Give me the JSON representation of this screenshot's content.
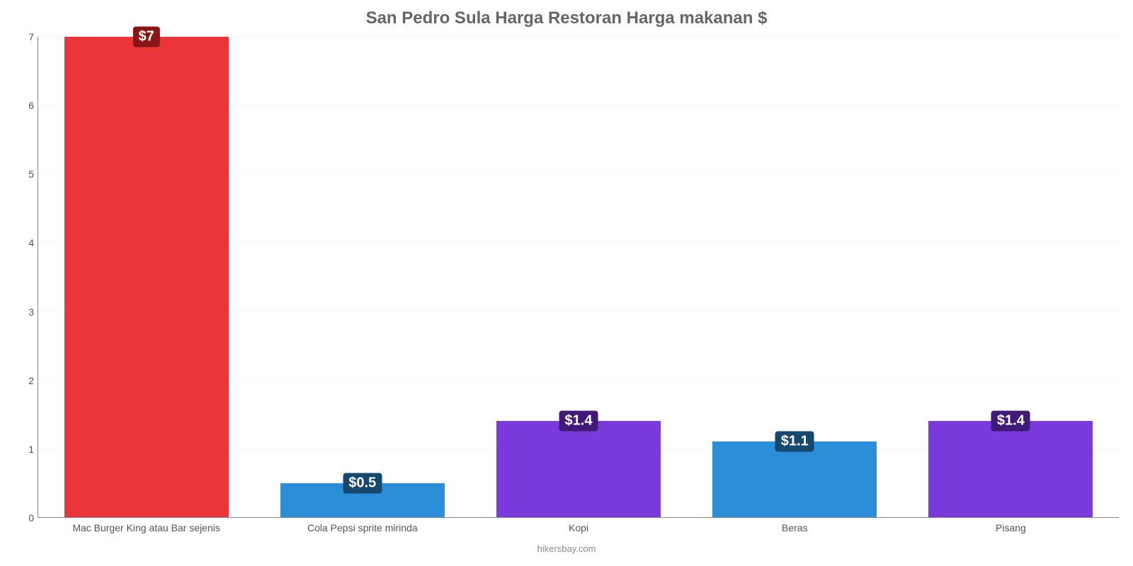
{
  "chart": {
    "type": "bar",
    "title": "San Pedro Sula Harga Restoran Harga makanan $",
    "title_color": "#666666",
    "title_fontsize": 24,
    "title_fontweight": "bold",
    "credit": "hikersbay.com",
    "credit_color": "#8a8a8a",
    "credit_fontsize": 13,
    "background_color": "#ffffff",
    "grid_color": "#fbf6f6",
    "axis_line_color": "#888888",
    "label_color": "#555555",
    "x_label_fontsize": 14,
    "y_label_fontsize": 14,
    "ylim": [
      0,
      7
    ],
    "ytick_step": 1,
    "yticks": [
      0,
      1,
      2,
      3,
      4,
      5,
      6,
      7
    ],
    "bar_width_pct": 76,
    "value_label_fontsize": 20,
    "value_label_text_color": "#ffffff",
    "categories": [
      "Mac Burger King atau Bar sejenis",
      "Cola Pepsi sprite mirinda",
      "Kopi",
      "Beras",
      "Pisang"
    ],
    "values": [
      7,
      0.5,
      1.4,
      1.1,
      1.4
    ],
    "value_labels": [
      "$7",
      "$0.5",
      "$1.4",
      "$1.1",
      "$1.4"
    ],
    "bar_colors": [
      "#eb3639",
      "#2a8ed8",
      "#7a3adb",
      "#2a8ed8",
      "#7a3adb"
    ],
    "label_badge_colors": [
      "#8a1517",
      "#16476d",
      "#3f1a77",
      "#16476d",
      "#3f1a77"
    ]
  }
}
